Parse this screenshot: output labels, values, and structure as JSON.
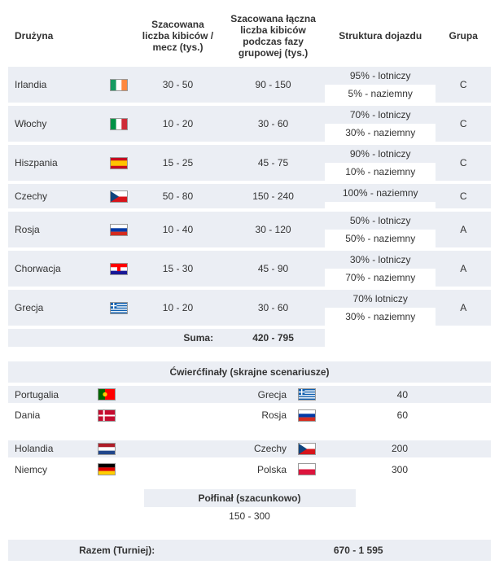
{
  "headers": {
    "team": "Drużyna",
    "perMatch": "Szacowana liczba kibiców / mecz (tys.)",
    "totalGroup": "Szacowana łączna liczba kibiców podczas fazy grupowej (tys.)",
    "structure": "Struktura dojazdu",
    "group": "Grupa"
  },
  "rows": [
    {
      "team": "Irlandia",
      "flag": "ie",
      "perMatch": "30 - 50",
      "totalGroup": "90 - 150",
      "struct1": "95% - lotniczy",
      "struct2": "5% - naziemny",
      "group": "C"
    },
    {
      "team": "Włochy",
      "flag": "it",
      "perMatch": "10 - 20",
      "totalGroup": "30 - 60",
      "struct1": "70% - lotniczy",
      "struct2": "30% - naziemny",
      "group": "C"
    },
    {
      "team": "Hiszpania",
      "flag": "es",
      "perMatch": "15 - 25",
      "totalGroup": "45 - 75",
      "struct1": "90% - lotniczy",
      "struct2": "10% - naziemny",
      "group": "C"
    },
    {
      "team": "Czechy",
      "flag": "cz",
      "perMatch": "50 - 80",
      "totalGroup": "150 - 240",
      "struct1": "100% - naziemny",
      "struct2": "",
      "group": "C"
    },
    {
      "team": "Rosja",
      "flag": "ru",
      "perMatch": "10 - 40",
      "totalGroup": "30 - 120",
      "struct1": "50% - lotniczy",
      "struct2": "50% - naziemny",
      "group": "A"
    },
    {
      "team": "Chorwacja",
      "flag": "hr",
      "perMatch": "15 - 30",
      "totalGroup": "45 - 90",
      "struct1": "30% - lotniczy",
      "struct2": "70% - naziemny",
      "group": "A"
    },
    {
      "team": "Grecja",
      "flag": "gr",
      "perMatch": "10 - 20",
      "totalGroup": "30 - 60",
      "struct1": "70% lotniczy",
      "struct2": "30% - naziemny",
      "group": "A"
    }
  ],
  "sumLabel": "Suma:",
  "sumValue": "420 - 795",
  "qfTitle": "Ćwierćfinały (skrajne scenariusze)",
  "qf": [
    {
      "t1": "Portugalia",
      "f1": "pt",
      "t2": "Grecja",
      "f2": "gr",
      "val": "40",
      "band": true
    },
    {
      "t1": "Dania",
      "f1": "dk",
      "t2": "Rosja",
      "f2": "ru",
      "val": "60",
      "band": false
    },
    {
      "spacer": true
    },
    {
      "t1": "Holandia",
      "f1": "nl",
      "t2": "Czechy",
      "f2": "cz",
      "val": "200",
      "band": true
    },
    {
      "t1": "Niemcy",
      "f1": "de",
      "t2": "Polska",
      "f2": "pl",
      "val": "300",
      "band": false
    }
  ],
  "semiTitle": "Połfinał (szacunkowo)",
  "semiValue": "150 - 300",
  "totalLabel": "Razem (Turniej):",
  "totalValue": "670 - 1 595"
}
